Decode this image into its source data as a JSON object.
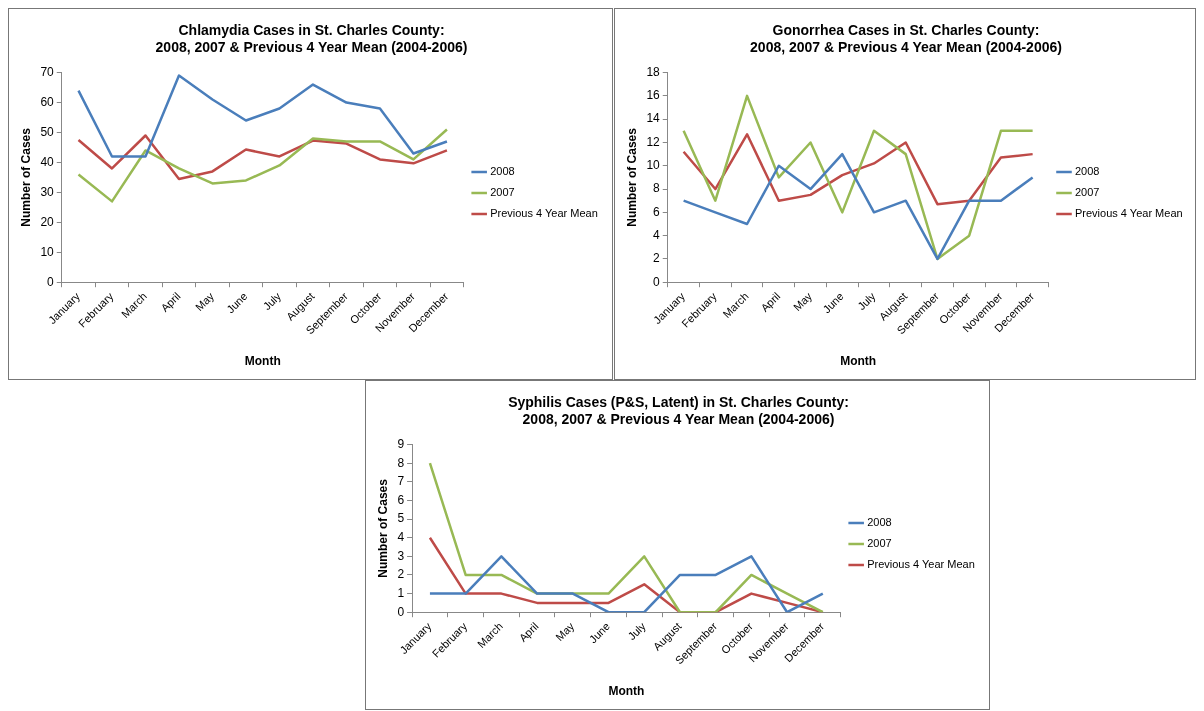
{
  "chart_data": [
    {
      "type": "line",
      "title": "Chlamydia Cases in St. Charles County:",
      "subtitle": "2008, 2007 & Previous 4 Year Mean (2004-2006)",
      "xlabel": "Month",
      "ylabel": "Number of Cases",
      "categories": [
        "January",
        "February",
        "March",
        "April",
        "May",
        "June",
        "July",
        "August",
        "September",
        "October",
        "November",
        "December"
      ],
      "series": [
        {
          "name": "2008",
          "color": "#4a7ebb",
          "values": [
            64,
            42,
            42,
            69,
            61,
            54,
            58,
            66,
            60,
            58,
            43,
            47
          ]
        },
        {
          "name": "2007",
          "color": "#98b954",
          "values": [
            36,
            27,
            44,
            38,
            33,
            34,
            39,
            48,
            47,
            47,
            41,
            51
          ]
        },
        {
          "name": "Previous 4 Year Mean",
          "color": "#be4b48",
          "values": [
            47.5,
            38,
            49,
            34.5,
            37,
            44.3,
            42,
            47.3,
            46.3,
            41,
            39.7,
            44
          ]
        }
      ],
      "ylim": [
        0,
        70
      ],
      "yticks": [
        0,
        10,
        20,
        30,
        40,
        50,
        60,
        70
      ],
      "grid": false,
      "legend": "right",
      "marker": "none",
      "line_style": "solid"
    },
    {
      "type": "line",
      "title": "Gonorrhea Cases in St. Charles County:",
      "subtitle": "2008, 2007 & Previous 4 Year Mean (2004-2006)",
      "xlabel": "Month",
      "ylabel": "Number of Cases",
      "categories": [
        "January",
        "February",
        "March",
        "April",
        "May",
        "June",
        "July",
        "August",
        "September",
        "October",
        "November",
        "December"
      ],
      "series": [
        {
          "name": "2008",
          "color": "#4a7ebb",
          "values": [
            7,
            6,
            5,
            10,
            8,
            11,
            6,
            7,
            2,
            7,
            7,
            9
          ]
        },
        {
          "name": "2007",
          "color": "#98b954",
          "values": [
            13,
            7,
            16,
            9,
            12,
            6,
            13,
            11,
            2,
            4,
            13,
            13
          ]
        },
        {
          "name": "Previous 4 Year Mean",
          "color": "#be4b48",
          "values": [
            11.2,
            8,
            12.7,
            7,
            7.5,
            9.2,
            10.2,
            12,
            6.7,
            7,
            10.7,
            11
          ]
        }
      ],
      "ylim": [
        0,
        18
      ],
      "yticks": [
        0,
        2,
        4,
        6,
        8,
        10,
        12,
        14,
        16,
        18
      ],
      "grid": false,
      "legend": "right",
      "marker": "none",
      "line_style": "solid"
    },
    {
      "type": "line",
      "title": "Syphilis Cases (P&S, Latent) in St. Charles County:",
      "subtitle": "2008, 2007 & Previous 4 Year Mean (2004-2006)",
      "xlabel": "Month",
      "ylabel": "Number of Cases",
      "categories": [
        "January",
        "February",
        "March",
        "April",
        "May",
        "June",
        "July",
        "August",
        "September",
        "October",
        "November",
        "December"
      ],
      "series": [
        {
          "name": "2008",
          "color": "#4a7ebb",
          "values": [
            1,
            1,
            3,
            1,
            1,
            0,
            0,
            2,
            2,
            3,
            0,
            1
          ]
        },
        {
          "name": "2007",
          "color": "#98b954",
          "values": [
            8,
            2,
            2,
            1,
            1,
            1,
            3,
            0,
            0,
            2,
            1,
            0
          ]
        },
        {
          "name": "Previous 4 Year Mean",
          "color": "#be4b48",
          "values": [
            4,
            1,
            1,
            0.5,
            0.5,
            0.5,
            1.5,
            0,
            0,
            1,
            0.5,
            0
          ]
        }
      ],
      "ylim": [
        0,
        9
      ],
      "yticks": [
        0,
        1,
        2,
        3,
        4,
        5,
        6,
        7,
        8,
        9
      ],
      "grid": false,
      "legend": "right",
      "marker": "none",
      "line_style": "solid"
    }
  ]
}
